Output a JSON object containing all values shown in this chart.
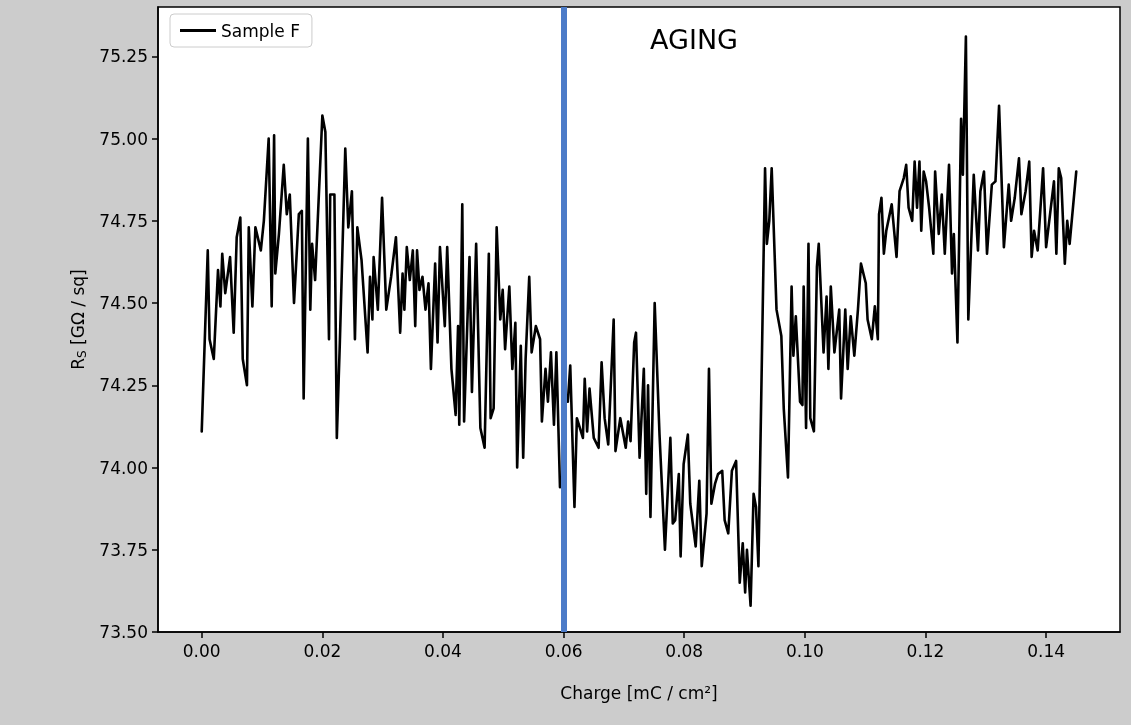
{
  "chart_data": {
    "type": "line",
    "xlabel": "Charge [mC / cm²]",
    "ylabel": "R$_{S}$ [GΩ / sq]",
    "annotations": [
      "AGING"
    ],
    "legend": "top left",
    "grid": false,
    "marker": "none",
    "line_style": "solid",
    "xlim": [
      -0.00725,
      0.15225
    ],
    "ylim": [
      73.5,
      75.4
    ],
    "xticks": [
      {
        "value": 0,
        "label": "0.00"
      },
      {
        "value": 0.02,
        "label": "0.02"
      },
      {
        "value": 0.04,
        "label": "0.04"
      },
      {
        "value": 0.06,
        "label": "0.06"
      },
      {
        "value": 0.08,
        "label": "0.08"
      },
      {
        "value": 0.1,
        "label": "0.10"
      },
      {
        "value": 0.12,
        "label": "0.12"
      },
      {
        "value": 0.14,
        "label": "0.14"
      }
    ],
    "yticks": [
      {
        "value": 73.5,
        "label": "73.50"
      },
      {
        "value": 73.75,
        "label": "73.75"
      },
      {
        "value": 74,
        "label": "74.00"
      },
      {
        "value": 74.25,
        "label": "74.25"
      },
      {
        "value": 74.5,
        "label": "74.50"
      },
      {
        "value": 74.75,
        "label": "74.75"
      },
      {
        "value": 75,
        "label": "75.00"
      },
      {
        "value": 75.25,
        "label": "75.25"
      }
    ],
    "ref_lines": [
      {
        "axis": "x",
        "value": 0.06,
        "color": "#4c7bc8"
      }
    ],
    "series": [
      {
        "name": "Sample F",
        "color": "#000000",
        "x": [
          0,
          0.001,
          0.0013,
          0.002,
          0.0027,
          0.0031,
          0.0034,
          0.0039,
          0.0047,
          0.0053,
          0.0058,
          0.0064,
          0.0068,
          0.0075,
          0.0078,
          0.0084,
          0.0089,
          0.0098,
          0.0103,
          0.0111,
          0.0116,
          0.012,
          0.0122,
          0.0128,
          0.0136,
          0.0141,
          0.0146,
          0.0153,
          0.0161,
          0.0166,
          0.0169,
          0.0176,
          0.018,
          0.0183,
          0.0188,
          0.02,
          0.0205,
          0.0211,
          0.0213,
          0.022,
          0.0224,
          0.0229,
          0.0238,
          0.0243,
          0.0249,
          0.0254,
          0.0258,
          0.0265,
          0.0275,
          0.0279,
          0.0283,
          0.0285,
          0.0292,
          0.0299,
          0.0306,
          0.0314,
          0.0322,
          0.0329,
          0.0333,
          0.0336,
          0.034,
          0.0345,
          0.035,
          0.0354,
          0.0357,
          0.0361,
          0.0366,
          0.0371,
          0.0376,
          0.038,
          0.0387,
          0.0391,
          0.0395,
          0.0403,
          0.0407,
          0.0414,
          0.0421,
          0.0425,
          0.0427,
          0.0432,
          0.0435,
          0.0444,
          0.0448,
          0.0455,
          0.0462,
          0.0469,
          0.0476,
          0.0479,
          0.0484,
          0.0489,
          0.0495,
          0.0499,
          0.0503,
          0.051,
          0.0515,
          0.052,
          0.0523,
          0.0529,
          0.0533,
          0.0537,
          0.0543,
          0.0547,
          0.0554,
          0.0561,
          0.0564,
          0.057,
          0.0574,
          0.0579,
          0.0584,
          0.0588,
          0.0594,
          0.0599,
          0.0607,
          0.0611,
          0.0618,
          0.0622,
          0.0632,
          0.0635,
          0.0639,
          0.0643,
          0.065,
          0.0658,
          0.0663,
          0.0668,
          0.0674,
          0.0683,
          0.0686,
          0.0694,
          0.0703,
          0.0707,
          0.0711,
          0.0717,
          0.072,
          0.0726,
          0.0733,
          0.0737,
          0.074,
          0.0744,
          0.0751,
          0.0759,
          0.0768,
          0.0777,
          0.0781,
          0.0785,
          0.0791,
          0.0794,
          0.0799,
          0.0806,
          0.081,
          0.0819,
          0.0825,
          0.0829,
          0.0837,
          0.0841,
          0.0845,
          0.0851,
          0.0856,
          0.0863,
          0.0867,
          0.0873,
          0.0879,
          0.0886,
          0.0892,
          0.0897,
          0.0901,
          0.0904,
          0.091,
          0.0915,
          0.0919,
          0.0923,
          0.0934,
          0.0937,
          0.0941,
          0.0945,
          0.0953,
          0.0961,
          0.0965,
          0.0972,
          0.0978,
          0.0981,
          0.0985,
          0.0992,
          0.0996,
          0.0998,
          0.1002,
          0.1006,
          0.1009,
          0.1015,
          0.102,
          0.1023,
          0.1031,
          0.1036,
          0.1039,
          0.1043,
          0.1049,
          0.1057,
          0.106,
          0.1067,
          0.1071,
          0.1076,
          0.1082,
          0.1088,
          0.1093,
          0.1101,
          0.1104,
          0.1111,
          0.1116,
          0.1121,
          0.1123,
          0.1127,
          0.1131,
          0.1135,
          0.1144,
          0.1152,
          0.1157,
          0.1164,
          0.1168,
          0.1172,
          0.1178,
          0.1182,
          0.1186,
          0.119,
          0.1193,
          0.1197,
          0.1201,
          0.1206,
          0.1213,
          0.1216,
          0.1222,
          0.1227,
          0.1232,
          0.1239,
          0.1244,
          0.1247,
          0.1253,
          0.1259,
          0.1262,
          0.1267,
          0.1271,
          0.128,
          0.1287,
          0.1291,
          0.1297,
          0.1302,
          0.131,
          0.1316,
          0.1322,
          0.133,
          0.1338,
          0.1342,
          0.1348,
          0.1355,
          0.1359,
          0.1366,
          0.1372,
          0.1376,
          0.138,
          0.1386,
          0.1395,
          0.14,
          0.1413,
          0.1417,
          0.1421,
          0.1425,
          0.1431,
          0.1435,
          0.1439,
          0.145
        ],
        "values": [
          74.11,
          74.66,
          74.39,
          74.33,
          74.6,
          74.49,
          74.65,
          74.53,
          74.64,
          74.41,
          74.7,
          74.76,
          74.33,
          74.25,
          74.73,
          74.49,
          74.73,
          74.66,
          74.75,
          75.0,
          74.49,
          75.01,
          74.59,
          74.71,
          74.92,
          74.77,
          74.83,
          74.5,
          74.77,
          74.78,
          74.21,
          75.0,
          74.48,
          74.68,
          74.57,
          75.07,
          75.02,
          74.39,
          74.83,
          74.83,
          74.09,
          74.38,
          74.97,
          74.73,
          74.84,
          74.39,
          74.73,
          74.63,
          74.35,
          74.58,
          74.45,
          74.64,
          74.48,
          74.82,
          74.48,
          74.58,
          74.7,
          74.41,
          74.59,
          74.48,
          74.67,
          74.57,
          74.66,
          74.43,
          74.66,
          74.54,
          74.58,
          74.48,
          74.56,
          74.3,
          74.62,
          74.38,
          74.67,
          74.43,
          74.67,
          74.3,
          74.16,
          74.43,
          74.13,
          74.8,
          74.14,
          74.64,
          74.23,
          74.68,
          74.12,
          74.06,
          74.65,
          74.15,
          74.18,
          74.73,
          74.45,
          74.54,
          74.36,
          74.55,
          74.3,
          74.44,
          74.0,
          74.37,
          74.03,
          74.33,
          74.58,
          74.35,
          74.43,
          74.39,
          74.14,
          74.3,
          74.2,
          74.35,
          74.13,
          74.35,
          73.94,
          null,
          74.2,
          74.31,
          73.88,
          74.15,
          74.09,
          74.27,
          74.11,
          74.24,
          74.09,
          74.06,
          74.32,
          74.15,
          74.07,
          74.45,
          74.05,
          74.15,
          74.06,
          74.14,
          74.08,
          74.38,
          74.41,
          74.03,
          74.3,
          73.92,
          74.25,
          73.85,
          74.5,
          74.1,
          73.75,
          74.09,
          73.83,
          73.84,
          73.98,
          73.73,
          74.01,
          74.1,
          73.89,
          73.76,
          73.96,
          73.7,
          73.86,
          74.3,
          73.89,
          73.95,
          73.98,
          73.99,
          73.84,
          73.8,
          73.99,
          74.02,
          73.65,
          73.77,
          73.62,
          73.75,
          73.58,
          73.92,
          73.88,
          73.7,
          74.91,
          74.68,
          74.75,
          74.91,
          74.48,
          74.4,
          74.18,
          73.97,
          74.55,
          74.34,
          74.46,
          74.2,
          74.19,
          74.55,
          74.12,
          74.68,
          74.15,
          74.11,
          74.61,
          74.68,
          74.35,
          74.52,
          74.3,
          74.55,
          74.35,
          74.48,
          74.21,
          74.48,
          74.3,
          74.46,
          74.34,
          74.48,
          74.62,
          74.56,
          74.45,
          74.39,
          74.49,
          74.39,
          74.77,
          74.82,
          74.65,
          74.72,
          74.8,
          74.64,
          74.84,
          74.88,
          74.92,
          74.79,
          74.75,
          74.93,
          74.79,
          74.93,
          74.72,
          74.9,
          74.87,
          74.79,
          74.65,
          74.9,
          74.71,
          74.83,
          74.65,
          74.92,
          74.59,
          74.71,
          74.38,
          75.06,
          74.89,
          75.31,
          74.45,
          74.89,
          74.66,
          74.84,
          74.9,
          74.65,
          74.86,
          74.87,
          75.1,
          74.67,
          74.86,
          74.75,
          74.82,
          74.94,
          74.77,
          74.84,
          74.93,
          74.64,
          74.72,
          74.66,
          74.91,
          74.67,
          74.87,
          74.65,
          74.91,
          74.88,
          74.62,
          74.75,
          74.68,
          74.9
        ]
      }
    ]
  }
}
